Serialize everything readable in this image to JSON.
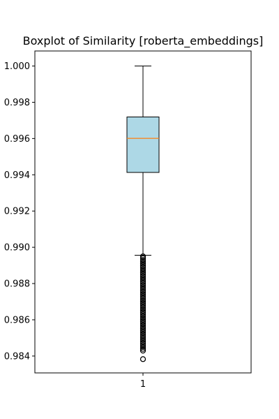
{
  "chart_data": {
    "type": "boxplot",
    "title": "Boxplot of Similarity [roberta_embeddings]",
    "xlabel": "",
    "ylabel": "",
    "categories": [
      "1"
    ],
    "ylim": [
      0.98307,
      1.00083
    ],
    "yticks": [
      0.984,
      0.986,
      0.988,
      0.99,
      0.992,
      0.994,
      0.996,
      0.998,
      1.0
    ],
    "ytick_labels": [
      "0.984",
      "0.986",
      "0.988",
      "0.990",
      "0.992",
      "0.994",
      "0.996",
      "0.998",
      "1.000"
    ],
    "box": {
      "whisker_low": 0.98956,
      "q1": 0.99413,
      "median": 0.99601,
      "q3": 0.99719,
      "whisker_high": 1.0
    },
    "outliers": [
      0.9895,
      0.9894,
      0.9893,
      0.9892,
      0.9891,
      0.989,
      0.9889,
      0.9888,
      0.9887,
      0.9886,
      0.9885,
      0.9884,
      0.9883,
      0.9882,
      0.9881,
      0.988,
      0.9879,
      0.9878,
      0.9877,
      0.9876,
      0.9875,
      0.9874,
      0.9873,
      0.9872,
      0.9871,
      0.987,
      0.9869,
      0.9868,
      0.9867,
      0.9866,
      0.9865,
      0.9864,
      0.9863,
      0.9862,
      0.9861,
      0.986,
      0.9859,
      0.9858,
      0.9857,
      0.9856,
      0.9855,
      0.9854,
      0.9853,
      0.9852,
      0.9851,
      0.985,
      0.9849,
      0.9848,
      0.9847,
      0.9846,
      0.9845,
      0.9844,
      0.9843,
      0.98383
    ],
    "colors": {
      "box_fill": "#add8e6",
      "median": "#ff7f0e",
      "line": "#000000"
    },
    "grid": false,
    "legend": "none"
  }
}
